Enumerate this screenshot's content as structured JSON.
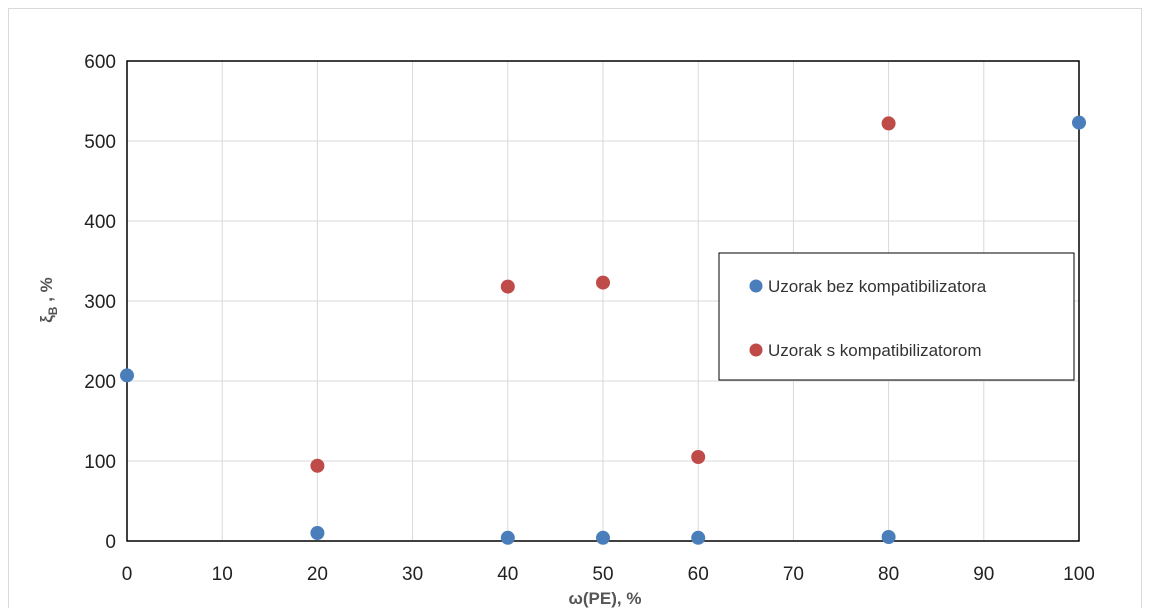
{
  "chart_data": {
    "type": "scatter",
    "xlabel": "ω(PE), %",
    "ylabel_main": "ξ",
    "ylabel_sub": "B",
    "ylabel_rest": " ,  %",
    "xlim": [
      0,
      100
    ],
    "ylim": [
      0,
      600
    ],
    "x_ticks": [
      "0",
      "10",
      "20",
      "30",
      "40",
      "50",
      "60",
      "70",
      "80",
      "90",
      "100"
    ],
    "y_ticks": [
      "0",
      "100",
      "200",
      "300",
      "400",
      "500",
      "600"
    ],
    "grid": true,
    "legend_position": "right",
    "series": [
      {
        "name": "Uzorak bez kompatibilizatora",
        "color": "#4a7ebb",
        "points": [
          [
            0,
            207
          ],
          [
            20,
            10
          ],
          [
            40,
            4
          ],
          [
            50,
            4
          ],
          [
            60,
            4
          ],
          [
            80,
            5
          ],
          [
            100,
            523
          ]
        ]
      },
      {
        "name": "Uzorak s kompatibilizatorom",
        "color": "#be4b48",
        "points": [
          [
            20,
            94
          ],
          [
            40,
            318
          ],
          [
            50,
            323
          ],
          [
            60,
            105
          ],
          [
            80,
            522
          ]
        ]
      }
    ]
  }
}
